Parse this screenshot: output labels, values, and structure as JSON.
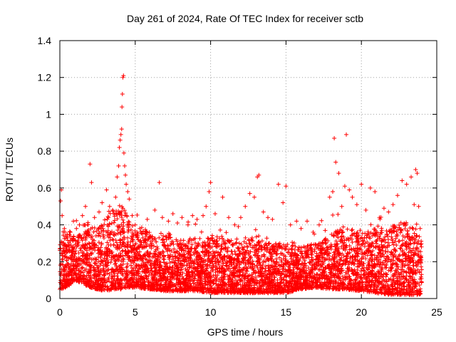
{
  "chart_data": {
    "type": "scatter",
    "title": "Day 261 of 2024, Rate Of TEC Index for receiver sctb",
    "xlabel": "GPS time / hours",
    "ylabel": "ROTI / TECUs",
    "xlim": [
      0,
      25
    ],
    "ylim": [
      0,
      1.4
    ],
    "x_ticks": [
      0,
      5,
      10,
      15,
      20,
      25
    ],
    "x_tick_labels": [
      "0",
      "5",
      "10",
      "15",
      "20",
      "25"
    ],
    "y_ticks": [
      0,
      0.2,
      0.4,
      0.6,
      0.8,
      1.0,
      1.2,
      1.4
    ],
    "y_tick_labels": [
      "0",
      "0.2",
      "0.4",
      "0.6",
      "0.8",
      "1",
      "1.2",
      "1.4"
    ],
    "grid": true,
    "marker": "+",
    "marker_color": "#ff0000",
    "series": [
      {
        "name": "ROTI",
        "points": [
          [
            0.05,
            0.53
          ],
          [
            0.1,
            0.59
          ],
          [
            0.15,
            0.45
          ],
          [
            0.3,
            0.38
          ],
          [
            0.5,
            0.33
          ],
          [
            0.7,
            0.36
          ],
          [
            0.9,
            0.42
          ],
          [
            1.1,
            0.38
          ],
          [
            1.3,
            0.4
          ],
          [
            1.5,
            0.45
          ],
          [
            1.7,
            0.5
          ],
          [
            2.0,
            0.73
          ],
          [
            2.1,
            0.63
          ],
          [
            2.3,
            0.44
          ],
          [
            2.6,
            0.47
          ],
          [
            2.8,
            0.52
          ],
          [
            3.1,
            0.59
          ],
          [
            3.3,
            0.5
          ],
          [
            3.5,
            0.48
          ],
          [
            3.7,
            0.55
          ],
          [
            3.8,
            0.66
          ],
          [
            3.9,
            0.72
          ],
          [
            3.95,
            0.82
          ],
          [
            4.0,
            0.86
          ],
          [
            4.05,
            0.89
          ],
          [
            4.1,
            0.92
          ],
          [
            4.12,
            1.04
          ],
          [
            4.15,
            1.11
          ],
          [
            4.18,
            1.2
          ],
          [
            4.22,
            1.21
          ],
          [
            4.25,
            0.79
          ],
          [
            4.3,
            0.72
          ],
          [
            4.35,
            0.67
          ],
          [
            4.4,
            0.62
          ],
          [
            4.5,
            0.58
          ],
          [
            4.6,
            0.54
          ],
          [
            4.8,
            0.45
          ],
          [
            5.0,
            0.4
          ],
          [
            5.3,
            0.38
          ],
          [
            5.8,
            0.43
          ],
          [
            6.3,
            0.48
          ],
          [
            6.6,
            0.63
          ],
          [
            6.8,
            0.44
          ],
          [
            7.2,
            0.42
          ],
          [
            7.5,
            0.46
          ],
          [
            7.8,
            0.41
          ],
          [
            8.1,
            0.44
          ],
          [
            8.5,
            0.4
          ],
          [
            8.8,
            0.45
          ],
          [
            9.1,
            0.43
          ],
          [
            9.5,
            0.45
          ],
          [
            9.7,
            0.5
          ],
          [
            9.9,
            0.58
          ],
          [
            10.0,
            0.63
          ],
          [
            10.3,
            0.46
          ],
          [
            10.8,
            0.55
          ],
          [
            11.2,
            0.44
          ],
          [
            11.6,
            0.4
          ],
          [
            12.0,
            0.44
          ],
          [
            12.3,
            0.5
          ],
          [
            12.6,
            0.57
          ],
          [
            12.9,
            0.55
          ],
          [
            13.1,
            0.66
          ],
          [
            13.2,
            0.67
          ],
          [
            13.5,
            0.47
          ],
          [
            13.8,
            0.44
          ],
          [
            14.1,
            0.43
          ],
          [
            14.5,
            0.62
          ],
          [
            14.8,
            0.52
          ],
          [
            15.0,
            0.61
          ],
          [
            15.3,
            0.4
          ],
          [
            15.7,
            0.42
          ],
          [
            16.0,
            0.38
          ],
          [
            16.4,
            0.42
          ],
          [
            16.8,
            0.36
          ],
          [
            17.2,
            0.4
          ],
          [
            17.6,
            0.37
          ],
          [
            17.9,
            0.55
          ],
          [
            18.1,
            0.58
          ],
          [
            18.2,
            0.87
          ],
          [
            18.3,
            0.74
          ],
          [
            18.5,
            0.68
          ],
          [
            18.7,
            0.5
          ],
          [
            18.9,
            0.61
          ],
          [
            19.0,
            0.89
          ],
          [
            19.2,
            0.59
          ],
          [
            19.4,
            0.55
          ],
          [
            19.7,
            0.51
          ],
          [
            20.0,
            0.62
          ],
          [
            20.3,
            0.48
          ],
          [
            20.6,
            0.6
          ],
          [
            20.9,
            0.58
          ],
          [
            21.2,
            0.44
          ],
          [
            21.5,
            0.49
          ],
          [
            21.8,
            0.47
          ],
          [
            22.1,
            0.51
          ],
          [
            22.4,
            0.56
          ],
          [
            22.7,
            0.64
          ],
          [
            23.0,
            0.62
          ],
          [
            23.3,
            0.66
          ],
          [
            23.5,
            0.51
          ],
          [
            23.6,
            0.7
          ],
          [
            23.7,
            0.68
          ],
          [
            23.8,
            0.5
          ],
          [
            23.9,
            0.38
          ]
        ]
      }
    ],
    "envelope": {
      "description": "dense background scatter per hour: baseline floor and typical upper envelope of ROTI",
      "hours": [
        0,
        0.5,
        1,
        1.5,
        2,
        2.5,
        3,
        3.5,
        4,
        4.5,
        5,
        6,
        7,
        8,
        9,
        10,
        11,
        12,
        13,
        14,
        15,
        16,
        17,
        18,
        19,
        20,
        21,
        22,
        23,
        24
      ],
      "floor": [
        0.05,
        0.06,
        0.1,
        0.08,
        0.06,
        0.05,
        0.04,
        0.05,
        0.05,
        0.06,
        0.06,
        0.05,
        0.04,
        0.04,
        0.04,
        0.03,
        0.03,
        0.03,
        0.03,
        0.03,
        0.03,
        0.05,
        0.06,
        0.05,
        0.05,
        0.04,
        0.03,
        0.02,
        0.02,
        0.02
      ],
      "upper": [
        0.35,
        0.38,
        0.34,
        0.4,
        0.42,
        0.38,
        0.42,
        0.48,
        0.52,
        0.45,
        0.38,
        0.36,
        0.34,
        0.32,
        0.33,
        0.35,
        0.32,
        0.3,
        0.34,
        0.3,
        0.3,
        0.28,
        0.3,
        0.35,
        0.4,
        0.36,
        0.38,
        0.4,
        0.42,
        0.35
      ]
    }
  }
}
